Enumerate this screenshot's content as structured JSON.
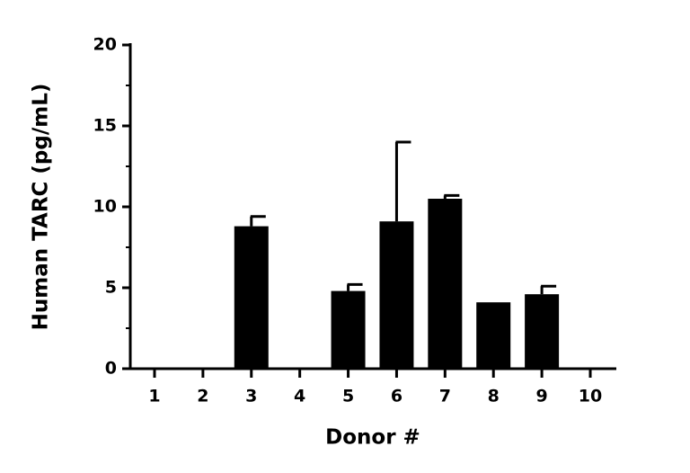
{
  "chart_data": {
    "type": "bar",
    "x_label": "Donor #",
    "y_label": "Human TARC (pg/mL)",
    "categories": [
      "1",
      "2",
      "3",
      "4",
      "5",
      "6",
      "7",
      "8",
      "9",
      "10"
    ],
    "values": [
      0,
      0,
      8.8,
      0,
      4.8,
      9.1,
      10.5,
      4.1,
      4.6,
      0
    ],
    "errors": [
      null,
      null,
      0.6,
      null,
      0.4,
      4.9,
      0.2,
      null,
      0.5,
      null
    ],
    "color": "#000000",
    "ylim": [
      0,
      20
    ],
    "yticks": [
      0,
      5,
      10,
      15,
      20
    ],
    "minor_yticks": [
      2.5,
      7.5,
      12.5,
      17.5
    ]
  }
}
